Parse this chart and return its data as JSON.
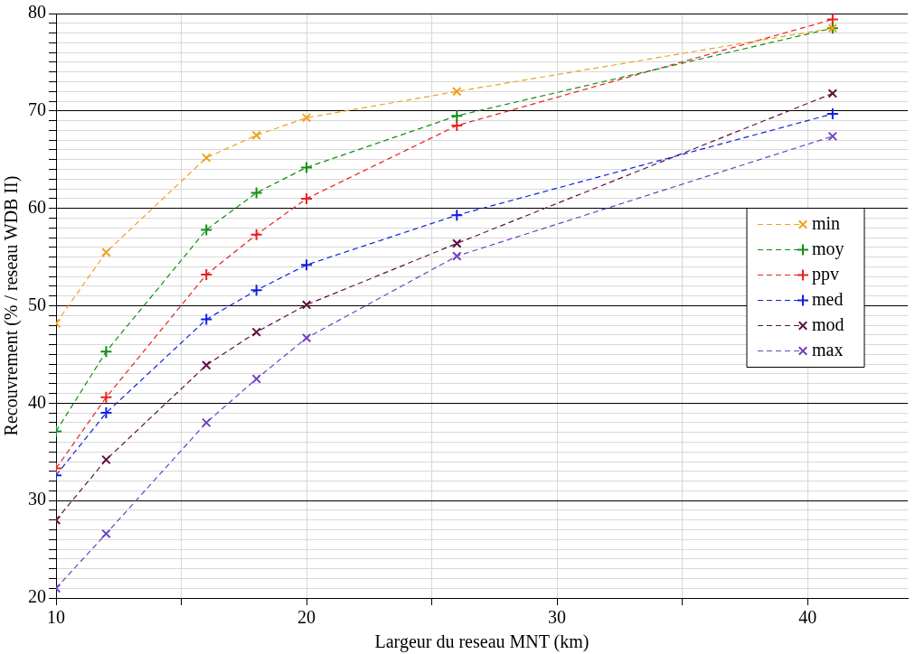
{
  "chart_data": {
    "type": "line",
    "xlabel": "Largeur du reseau MNT (km)",
    "ylabel": "Recouvrement (% / reseau WDB II)",
    "x": [
      10,
      12,
      16,
      18,
      20,
      26,
      41
    ],
    "series": [
      {
        "name": "min",
        "color": "#f0a020",
        "marker": "cross",
        "values": [
          48.2,
          55.5,
          65.2,
          67.5,
          69.3,
          72.0,
          78.5
        ]
      },
      {
        "name": "moy",
        "color": "#109010",
        "marker": "plus",
        "values": [
          37.1,
          45.3,
          57.8,
          61.6,
          64.2,
          69.5,
          78.5
        ]
      },
      {
        "name": "ppv",
        "color": "#e82020",
        "marker": "plus",
        "values": [
          33.3,
          40.6,
          53.2,
          57.3,
          61.0,
          68.5,
          79.4
        ]
      },
      {
        "name": "med",
        "color": "#1020e0",
        "marker": "plus",
        "values": [
          32.6,
          39.0,
          48.6,
          51.6,
          54.2,
          59.3,
          69.7
        ]
      },
      {
        "name": "mod",
        "color": "#601040",
        "marker": "cross",
        "values": [
          28.0,
          34.2,
          43.9,
          47.3,
          50.1,
          56.4,
          71.8
        ]
      },
      {
        "name": "max",
        "color": "#7040c0",
        "marker": "cross",
        "values": [
          21.0,
          26.6,
          38.0,
          42.5,
          46.7,
          55.1,
          67.4
        ]
      }
    ],
    "xlim": [
      10,
      44
    ],
    "xticks": [
      10,
      {
        "value": 15,
        "label": null
      },
      20,
      {
        "value": 25,
        "label": null
      },
      30,
      {
        "value": 35,
        "label": null
      },
      40
    ],
    "ylim": [
      20,
      80
    ],
    "yticks": [
      20,
      {
        "value": 21,
        "label": null
      },
      {
        "value": 22,
        "label": null
      },
      {
        "value": 23,
        "label": null
      },
      {
        "value": 24,
        "label": null
      },
      {
        "value": 25,
        "label": null
      },
      {
        "value": 26,
        "label": null
      },
      {
        "value": 27,
        "label": null
      },
      {
        "value": 28,
        "label": null
      },
      {
        "value": 29,
        "label": null
      },
      30,
      {
        "value": 31,
        "label": null
      },
      {
        "value": 32,
        "label": null
      },
      {
        "value": 33,
        "label": null
      },
      {
        "value": 34,
        "label": null
      },
      {
        "value": 35,
        "label": null
      },
      {
        "value": 36,
        "label": null
      },
      {
        "value": 37,
        "label": null
      },
      {
        "value": 38,
        "label": null
      },
      {
        "value": 39,
        "label": null
      },
      40,
      {
        "value": 41,
        "label": null
      },
      {
        "value": 42,
        "label": null
      },
      {
        "value": 43,
        "label": null
      },
      {
        "value": 44,
        "label": null
      },
      {
        "value": 45,
        "label": null
      },
      {
        "value": 46,
        "label": null
      },
      {
        "value": 47,
        "label": null
      },
      {
        "value": 48,
        "label": null
      },
      {
        "value": 49,
        "label": null
      },
      50,
      {
        "value": 51,
        "label": null
      },
      {
        "value": 52,
        "label": null
      },
      {
        "value": 53,
        "label": null
      },
      {
        "value": 54,
        "label": null
      },
      {
        "value": 55,
        "label": null
      },
      {
        "value": 56,
        "label": null
      },
      {
        "value": 57,
        "label": null
      },
      {
        "value": 58,
        "label": null
      },
      {
        "value": 59,
        "label": null
      },
      60,
      {
        "value": 61,
        "label": null
      },
      {
        "value": 62,
        "label": null
      },
      {
        "value": 63,
        "label": null
      },
      {
        "value": 64,
        "label": null
      },
      {
        "value": 65,
        "label": null
      },
      {
        "value": 66,
        "label": null
      },
      {
        "value": 67,
        "label": null
      },
      {
        "value": 68,
        "label": null
      },
      {
        "value": 69,
        "label": null
      },
      70,
      {
        "value": 71,
        "label": null
      },
      {
        "value": 72,
        "label": null
      },
      {
        "value": 73,
        "label": null
      },
      {
        "value": 74,
        "label": null
      },
      {
        "value": 75,
        "label": null
      },
      {
        "value": 76,
        "label": null
      },
      {
        "value": 77,
        "label": null
      },
      {
        "value": 78,
        "label": null
      },
      {
        "value": 79,
        "label": null
      },
      80
    ],
    "grid": true,
    "legend": "right",
    "line_style": "dashed"
  }
}
